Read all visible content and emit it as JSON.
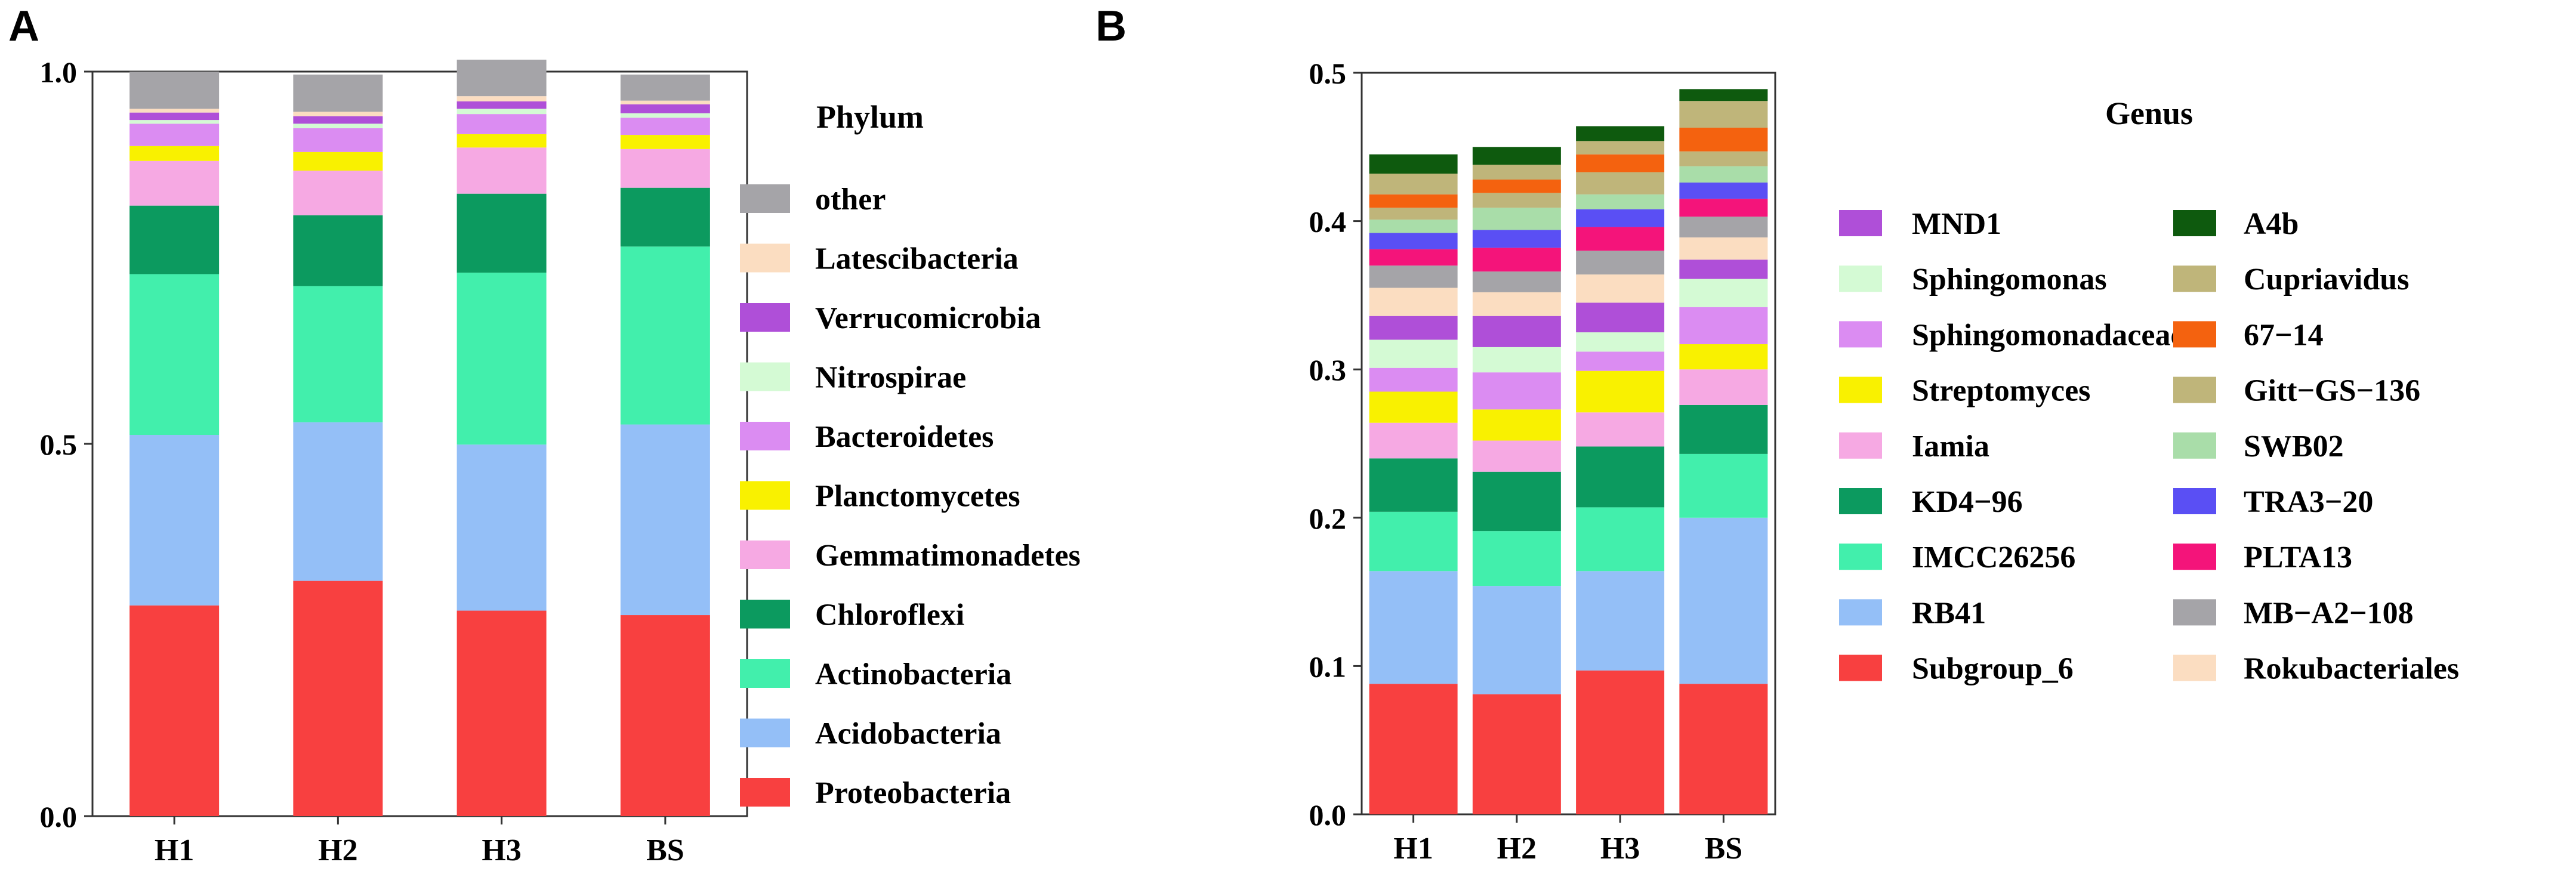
{
  "chart_data": [
    {
      "type": "bar",
      "stacked": true,
      "panel_label": "A",
      "categories": [
        "H1",
        "H2",
        "H3",
        "BS"
      ],
      "ylim": [
        0,
        1
      ],
      "yticks": [
        "0.0",
        "0.5",
        "1.0"
      ],
      "legend_title": "Phylum",
      "legend_position": "right",
      "series": [
        {
          "name": "Proteobacteria",
          "color": "#F84040",
          "values": [
            0.283,
            0.316,
            0.276,
            0.27
          ]
        },
        {
          "name": "Acidobacteria",
          "color": "#94BFF7",
          "values": [
            0.229,
            0.213,
            0.223,
            0.256
          ]
        },
        {
          "name": "Actinobacteria",
          "color": "#42EFAC",
          "values": [
            0.216,
            0.183,
            0.231,
            0.239
          ]
        },
        {
          "name": "Chloroflexi",
          "color": "#0C9A5F",
          "values": [
            0.092,
            0.095,
            0.106,
            0.079
          ]
        },
        {
          "name": "Gemmatimonadetes",
          "color": "#F6A9E3",
          "values": [
            0.06,
            0.06,
            0.062,
            0.052
          ]
        },
        {
          "name": "Planctomycetes",
          "color": "#F9F100",
          "values": [
            0.02,
            0.025,
            0.018,
            0.019
          ]
        },
        {
          "name": "Bacteroidetes",
          "color": "#DB8CF2",
          "values": [
            0.03,
            0.032,
            0.027,
            0.023
          ]
        },
        {
          "name": "Nitrospirae",
          "color": "#D4FAD4",
          "values": [
            0.005,
            0.006,
            0.007,
            0.006
          ]
        },
        {
          "name": "Verrucomicrobia",
          "color": "#AF4FD8",
          "values": [
            0.01,
            0.01,
            0.01,
            0.012
          ]
        },
        {
          "name": "Latescibacteria",
          "color": "#FBDDC1",
          "values": [
            0.005,
            0.006,
            0.007,
            0.005
          ]
        },
        {
          "name": "other",
          "color": "#A5A4A8",
          "values": [
            0.05,
            0.05,
            0.049,
            0.035
          ]
        }
      ]
    },
    {
      "type": "bar",
      "stacked": true,
      "panel_label": "B",
      "categories": [
        "H1",
        "H2",
        "H3",
        "BS"
      ],
      "ylim": [
        0,
        0.5
      ],
      "yticks": [
        "0.0",
        "0.1",
        "0.2",
        "0.3",
        "0.4",
        "0.5"
      ],
      "legend_title": "Genus",
      "legend_position": "right",
      "series": [
        {
          "name": "Subgroup_6",
          "color": "#F84040",
          "values": [
            0.088,
            0.081,
            0.097,
            0.088
          ]
        },
        {
          "name": "RB41",
          "color": "#94BFF7",
          "values": [
            0.076,
            0.073,
            0.067,
            0.112
          ]
        },
        {
          "name": "IMCC26256",
          "color": "#42EFAC",
          "values": [
            0.04,
            0.037,
            0.043,
            0.043
          ]
        },
        {
          "name": "KD4−96",
          "color": "#0C9A5F",
          "values": [
            0.036,
            0.04,
            0.041,
            0.033
          ]
        },
        {
          "name": "Iamia",
          "color": "#F6A9E3",
          "values": [
            0.024,
            0.021,
            0.023,
            0.024
          ]
        },
        {
          "name": "Streptomyces",
          "color": "#F9F100",
          "values": [
            0.021,
            0.021,
            0.028,
            0.017
          ]
        },
        {
          "name": "Sphingomonadaceae",
          "color": "#DB8CF2",
          "values": [
            0.016,
            0.025,
            0.013,
            0.025
          ]
        },
        {
          "name": "Sphingomonas",
          "color": "#D4FAD4",
          "values": [
            0.019,
            0.017,
            0.013,
            0.019
          ]
        },
        {
          "name": "MND1",
          "color": "#AF4FD8",
          "values": [
            0.016,
            0.021,
            0.02,
            0.013
          ]
        },
        {
          "name": "Rokubacteriales",
          "color": "#FBDDC1",
          "values": [
            0.019,
            0.016,
            0.019,
            0.015
          ]
        },
        {
          "name": "MB−A2−108",
          "color": "#A5A4A8",
          "values": [
            0.015,
            0.014,
            0.016,
            0.014
          ]
        },
        {
          "name": "PLTA13",
          "color": "#F4147A",
          "values": [
            0.011,
            0.016,
            0.016,
            0.012
          ]
        },
        {
          "name": "TRA3−20",
          "color": "#5A4FF4",
          "values": [
            0.011,
            0.012,
            0.012,
            0.011
          ]
        },
        {
          "name": "SWB02",
          "color": "#A9DDA9",
          "values": [
            0.009,
            0.015,
            0.01,
            0.011
          ]
        },
        {
          "name": "Gitt−GS−136",
          "color": "#BFB57A",
          "values": [
            0.008,
            0.01,
            0.015,
            0.01
          ]
        },
        {
          "name": "67−14",
          "color": "#F4620F",
          "values": [
            0.009,
            0.009,
            0.012,
            0.016
          ]
        },
        {
          "name": "Cupriavidus",
          "color": "#BFB57A",
          "values": [
            0.014,
            0.01,
            0.009,
            0.018
          ]
        },
        {
          "name": "A4b",
          "color": "#0E5A0E",
          "values": [
            0.013,
            0.012,
            0.01,
            0.008
          ]
        }
      ],
      "legend_columns": [
        [
          "MND1",
          "Sphingomonas",
          "Sphingomonadaceae",
          "Streptomyces",
          "Iamia",
          "KD4−96",
          "IMCC26256",
          "RB41",
          "Subgroup_6"
        ],
        [
          "A4b",
          "Cupriavidus",
          "67−14",
          "Gitt−GS−136",
          "SWB02",
          "TRA3−20",
          "PLTA13",
          "MB−A2−108",
          "Rokubacteriales"
        ]
      ]
    }
  ]
}
